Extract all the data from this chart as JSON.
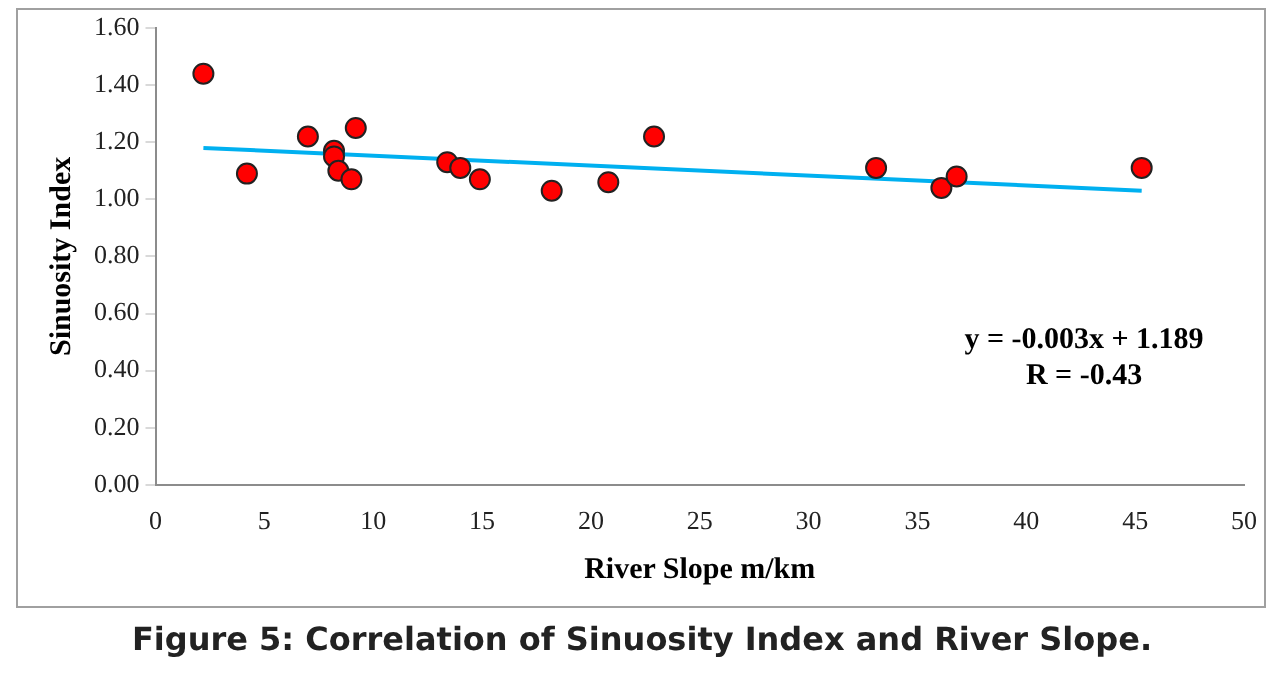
{
  "chart_data": {
    "type": "scatter",
    "title": "Figure 5: Correlation of Sinuosity Index and River Slope.",
    "xlabel": "River Slope m/km",
    "ylabel": "Sinuosity Index",
    "series": [
      {
        "color": "#ff0000",
        "marker": "circle",
        "x": [
          2.2,
          4.2,
          7.0,
          8.2,
          8.2,
          8.4,
          9.0,
          9.2,
          13.4,
          14.0,
          14.9,
          18.2,
          20.8,
          22.9,
          33.1,
          36.1,
          36.8,
          45.3
        ],
        "values": [
          1.44,
          1.09,
          1.22,
          1.17,
          1.15,
          1.1,
          1.07,
          1.25,
          1.13,
          1.11,
          1.07,
          1.03,
          1.06,
          1.22,
          1.11,
          1.04,
          1.08,
          1.11
        ]
      },
      {
        "type": "line",
        "color": "#00b0f0",
        "x": [
          2.2,
          45.3
        ],
        "values": [
          1.18,
          1.03
        ]
      }
    ],
    "xlim": [
      0,
      50
    ],
    "xticks": [
      0,
      5,
      10,
      15,
      20,
      25,
      30,
      35,
      40,
      45,
      50
    ],
    "ylim": [
      0,
      1.6
    ],
    "yticks": [
      {
        "value": 0,
        "label": "0.00"
      },
      {
        "value": 0.2,
        "label": "0.20"
      },
      {
        "value": 0.4,
        "label": "0.40"
      },
      {
        "value": 0.6,
        "label": "0.60"
      },
      {
        "value": 0.8,
        "label": "0.80"
      },
      {
        "value": 1,
        "label": "1.00"
      },
      {
        "value": 1.2,
        "label": "1.20"
      },
      {
        "value": 1.4,
        "label": "1.40"
      },
      {
        "value": 1.6,
        "label": "1.60"
      }
    ],
    "annotations": [
      "y = -0.003x + 1.189",
      "R = -0.43"
    ],
    "grid": false,
    "legend": false
  }
}
